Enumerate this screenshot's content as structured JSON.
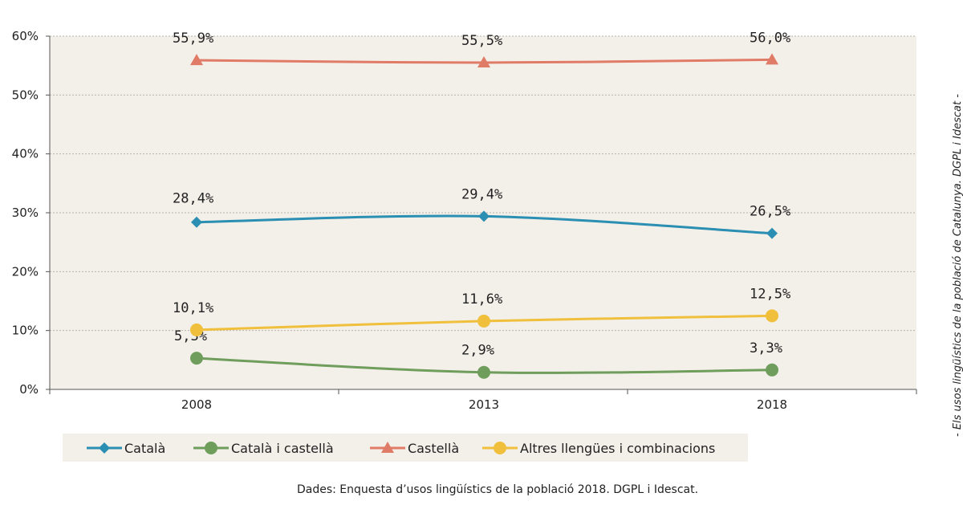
{
  "chart_data": {
    "type": "line",
    "x": [
      "2008",
      "2013",
      "2018"
    ],
    "ylim": [
      0,
      60
    ],
    "yticks": [
      "0%",
      "10%",
      "20%",
      "30%",
      "40%",
      "50%",
      "60%"
    ],
    "ytick_values": [
      0,
      10,
      20,
      30,
      40,
      50,
      60
    ],
    "grid": true,
    "legend_position": "bottom",
    "series": [
      {
        "name": "Català",
        "values": [
          28.4,
          29.4,
          26.5
        ],
        "labels": [
          "28,4%",
          "29,4%",
          "26,5%"
        ],
        "color": "#2b8fb3",
        "marker": "diamond"
      },
      {
        "name": "Català i castellà",
        "values": [
          5.3,
          2.9,
          3.3
        ],
        "labels": [
          "5,3%",
          "2,9%",
          "3,3%"
        ],
        "color": "#6f9e5c",
        "marker": "circle"
      },
      {
        "name": "Castellà",
        "values": [
          55.9,
          55.5,
          56.0
        ],
        "labels": [
          "55,9%",
          "55,5%",
          "56,0%"
        ],
        "color": "#e07b68",
        "marker": "triangle"
      },
      {
        "name": "Altres llengües i combinacions",
        "values": [
          10.1,
          11.6,
          12.5
        ],
        "labels": [
          "10,1%",
          "11,6%",
          "12,5%"
        ],
        "color": "#f0c03c",
        "marker": "circle"
      }
    ],
    "plot_background": "#f3efe9",
    "legend_background": "#f3efe9"
  },
  "source_text": "Dades: Enquesta d’usos lingüístics de la població 2018. DGPL i Idescat.",
  "side_caption": "- Els usos lingüístics de la població de Catalunya. DGPL i Idescat -"
}
